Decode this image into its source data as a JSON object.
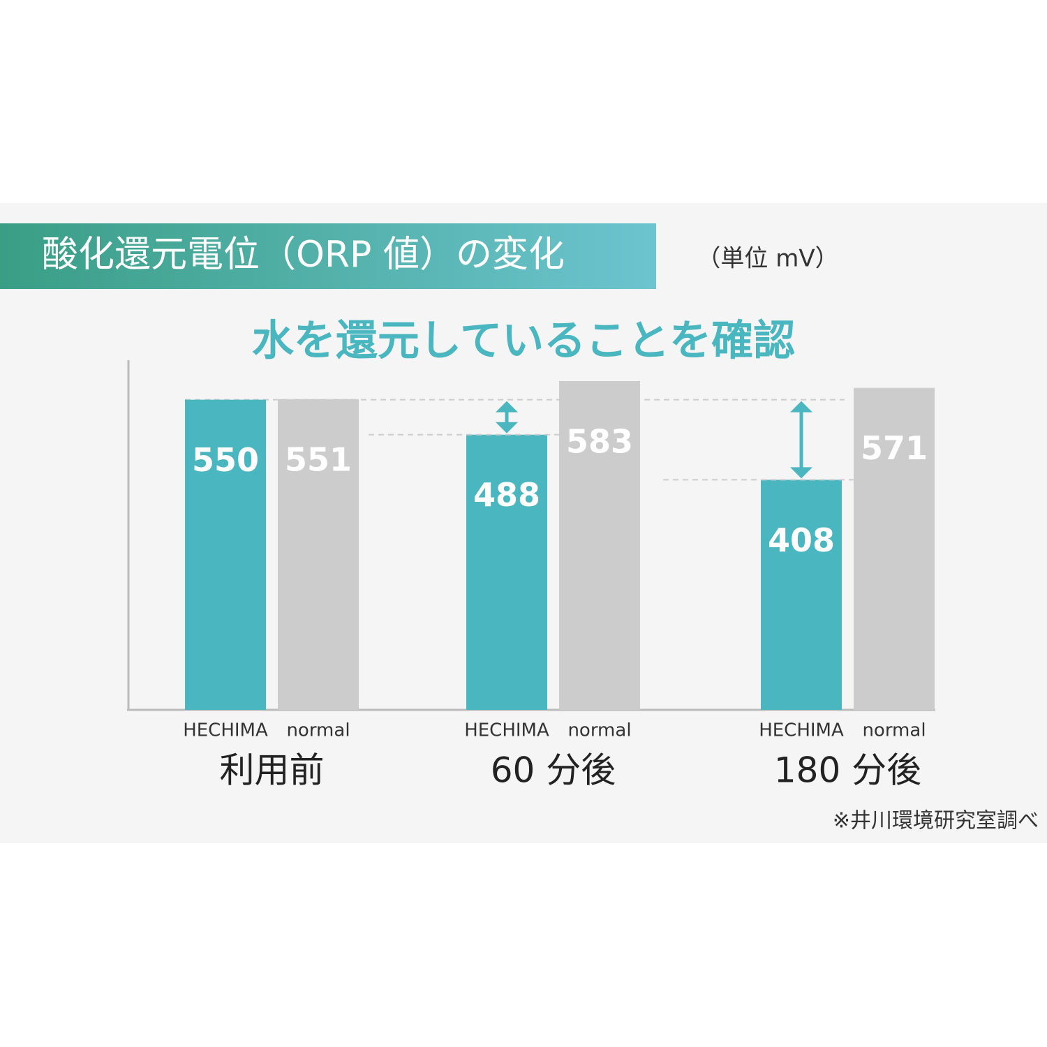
{
  "chart_data": {
    "type": "bar",
    "title": "酸化還元電位（ORP 値）の変化",
    "unit": "（単位 mV）",
    "subtitle": "水を還元していることを確認",
    "source": "※井川環境研究室調べ",
    "categories": [
      "利用前",
      "60 分後",
      "180 分後"
    ],
    "series": [
      {
        "name": "HECHIMA",
        "color": "#4ab6bf",
        "values": [
          550,
          488,
          408
        ]
      },
      {
        "name": "normal",
        "color": "#cccccc",
        "values": [
          551,
          583,
          571
        ]
      }
    ]
  }
}
